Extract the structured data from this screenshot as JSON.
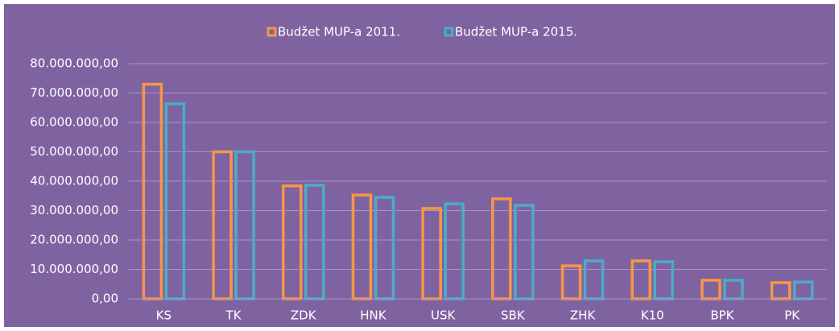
{
  "chart_data": {
    "type": "bar",
    "categories": [
      "KS",
      "TK",
      "ZDK",
      "HNK",
      "USK",
      "SBK",
      "ZHK",
      "K10",
      "BPK",
      "PK"
    ],
    "series": [
      {
        "name": "Budžet MUP-a 2011.",
        "color": "#f79646",
        "values": [
          73000000,
          50000000,
          38400000,
          35300000,
          30700000,
          34000000,
          11200000,
          12900000,
          6300000,
          5500000
        ]
      },
      {
        "name": "Budžet MUP-a 2015.",
        "color": "#4bacc6",
        "values": [
          66300000,
          50000000,
          38600000,
          34500000,
          32300000,
          31800000,
          12900000,
          12600000,
          6300000,
          5700000
        ]
      }
    ],
    "ylim": [
      0,
      80000000
    ],
    "yticks": [
      {
        "value": 0,
        "label": "0,00"
      },
      {
        "value": 10000000,
        "label": "10.000.000,00"
      },
      {
        "value": 20000000,
        "label": "20.000.000,00"
      },
      {
        "value": 30000000,
        "label": "30.000.000,00"
      },
      {
        "value": 40000000,
        "label": "40.000.000,00"
      },
      {
        "value": 50000000,
        "label": "50.000.000,00"
      },
      {
        "value": 60000000,
        "label": "60.000.000,00"
      },
      {
        "value": 70000000,
        "label": "70.000.000,00"
      },
      {
        "value": 80000000,
        "label": "80.000.000,00"
      }
    ],
    "grid": true,
    "legend": "top",
    "background": "#7f63a1"
  }
}
